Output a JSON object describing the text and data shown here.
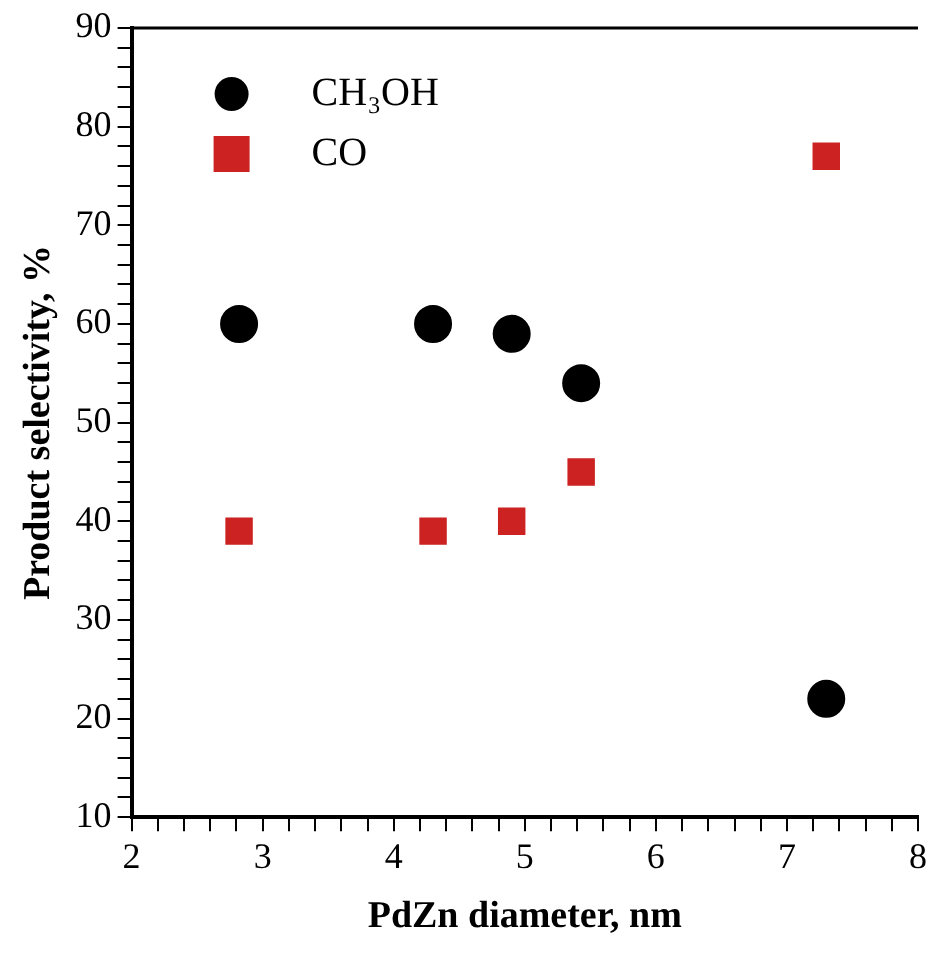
{
  "chart_data": {
    "type": "scatter",
    "xlabel": "PdZn diameter, nm",
    "ylabel": "Product selectivity, %",
    "series": [
      {
        "name": "CH₃OH",
        "color": "#000000",
        "marker": "circle",
        "x": [
          2.82,
          4.3,
          4.9,
          5.43,
          7.3
        ],
        "values": [
          60,
          60,
          59,
          54,
          22
        ]
      },
      {
        "name": "CO",
        "color": "#cc2222",
        "marker": "square",
        "x": [
          2.82,
          4.3,
          4.9,
          5.43,
          7.3
        ],
        "values": [
          39,
          39,
          40,
          45,
          77
        ]
      }
    ],
    "xlim": [
      2,
      8
    ],
    "ylim": [
      10,
      90
    ],
    "xticks": [
      2,
      {
        "value": 2.2,
        "label": null
      },
      {
        "value": 2.4,
        "label": null
      },
      {
        "value": 2.6,
        "label": null
      },
      {
        "value": 2.8,
        "label": null
      },
      3,
      {
        "value": 3.2,
        "label": null
      },
      {
        "value": 3.4,
        "label": null
      },
      {
        "value": 3.6,
        "label": null
      },
      {
        "value": 3.8,
        "label": null
      },
      4,
      {
        "value": 4.2,
        "label": null
      },
      {
        "value": 4.4,
        "label": null
      },
      {
        "value": 4.6,
        "label": null
      },
      {
        "value": 4.8,
        "label": null
      },
      5,
      {
        "value": 5.2,
        "label": null
      },
      {
        "value": 5.4,
        "label": null
      },
      {
        "value": 5.6,
        "label": null
      },
      {
        "value": 5.8,
        "label": null
      },
      6,
      {
        "value": 6.2,
        "label": null
      },
      {
        "value": 6.4,
        "label": null
      },
      {
        "value": 6.6,
        "label": null
      },
      {
        "value": 6.8,
        "label": null
      },
      7,
      {
        "value": 7.2,
        "label": null
      },
      {
        "value": 7.4,
        "label": null
      },
      {
        "value": 7.6,
        "label": null
      },
      {
        "value": 7.8,
        "label": null
      },
      8
    ],
    "yticks": [
      10,
      {
        "value": 12,
        "label": null
      },
      {
        "value": 14,
        "label": null
      },
      {
        "value": 16,
        "label": null
      },
      {
        "value": 18,
        "label": null
      },
      20,
      {
        "value": 22,
        "label": null
      },
      {
        "value": 24,
        "label": null
      },
      {
        "value": 26,
        "label": null
      },
      {
        "value": 28,
        "label": null
      },
      30,
      {
        "value": 32,
        "label": null
      },
      {
        "value": 34,
        "label": null
      },
      {
        "value": 36,
        "label": null
      },
      {
        "value": 38,
        "label": null
      },
      40,
      {
        "value": 42,
        "label": null
      },
      {
        "value": 44,
        "label": null
      },
      {
        "value": 46,
        "label": null
      },
      {
        "value": 48,
        "label": null
      },
      50,
      {
        "value": 52,
        "label": null
      },
      {
        "value": 54,
        "label": null
      },
      {
        "value": 56,
        "label": null
      },
      {
        "value": 58,
        "label": null
      },
      60,
      {
        "value": 62,
        "label": null
      },
      {
        "value": 64,
        "label": null
      },
      {
        "value": 66,
        "label": null
      },
      {
        "value": 68,
        "label": null
      },
      70,
      {
        "value": 72,
        "label": null
      },
      {
        "value": 74,
        "label": null
      },
      {
        "value": 76,
        "label": null
      },
      {
        "value": 78,
        "label": null
      },
      80,
      {
        "value": 82,
        "label": null
      },
      {
        "value": 84,
        "label": null
      },
      {
        "value": 86,
        "label": null
      },
      {
        "value": 88,
        "label": null
      },
      90
    ],
    "grid": false,
    "legend": "top left"
  }
}
